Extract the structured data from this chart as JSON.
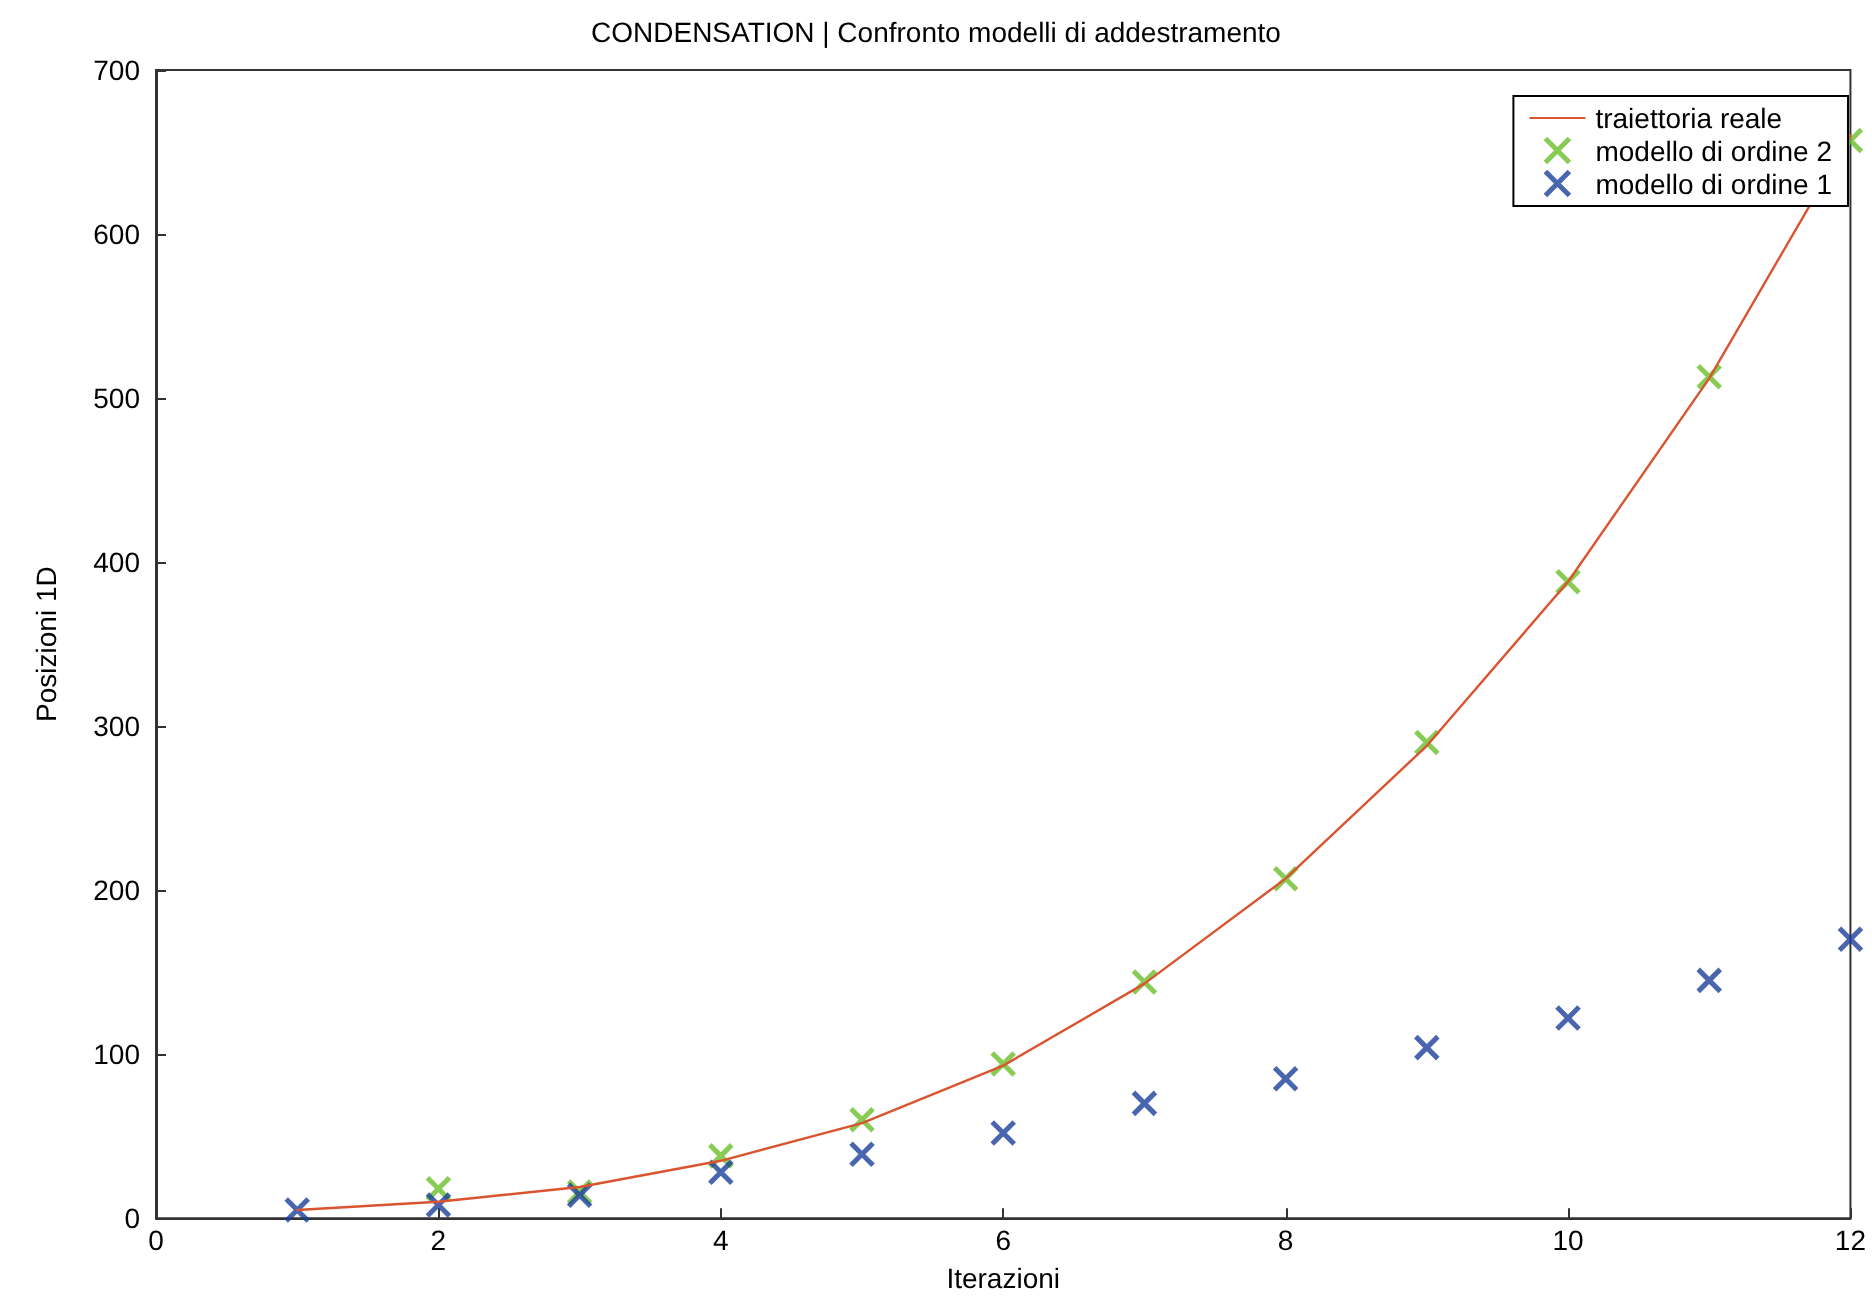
{
  "chart_data": {
    "type": "line",
    "title": "CONDENSATION | Confronto modelli di addestramento",
    "xlabel": "Iterazioni",
    "ylabel": "Posizioni 1D",
    "x": [
      1,
      2,
      3,
      4,
      5,
      6,
      7,
      8,
      9,
      10,
      11,
      12
    ],
    "series": [
      {
        "name": "traiettoria reale",
        "color": "#d9542f",
        "marker": "none",
        "line_style": "solid",
        "values": [
          5,
          10,
          19,
          35,
          58,
          93,
          143,
          207,
          288,
          388,
          512,
          660
        ]
      },
      {
        "name": "modello di ordine 2",
        "type": "scatter",
        "color": "#6cbf2a",
        "marker": "cross",
        "values": [
          null,
          18,
          16,
          38,
          60,
          94,
          144,
          207,
          290,
          388,
          513,
          657
        ]
      },
      {
        "name": "modello di ordine 1",
        "type": "scatter",
        "color": "#1a3f9a",
        "marker": "cross",
        "values": [
          5,
          8,
          14,
          28,
          39,
          52,
          70,
          85,
          104,
          122,
          145,
          170
        ]
      }
    ],
    "xlim": [
      0,
      12
    ],
    "xticks": [
      0,
      2,
      4,
      6,
      8,
      10,
      12
    ],
    "ylim": [
      0,
      700
    ],
    "yticks": [
      0,
      100,
      200,
      300,
      400,
      500,
      600,
      700
    ],
    "grid": false,
    "legend": "top right"
  }
}
